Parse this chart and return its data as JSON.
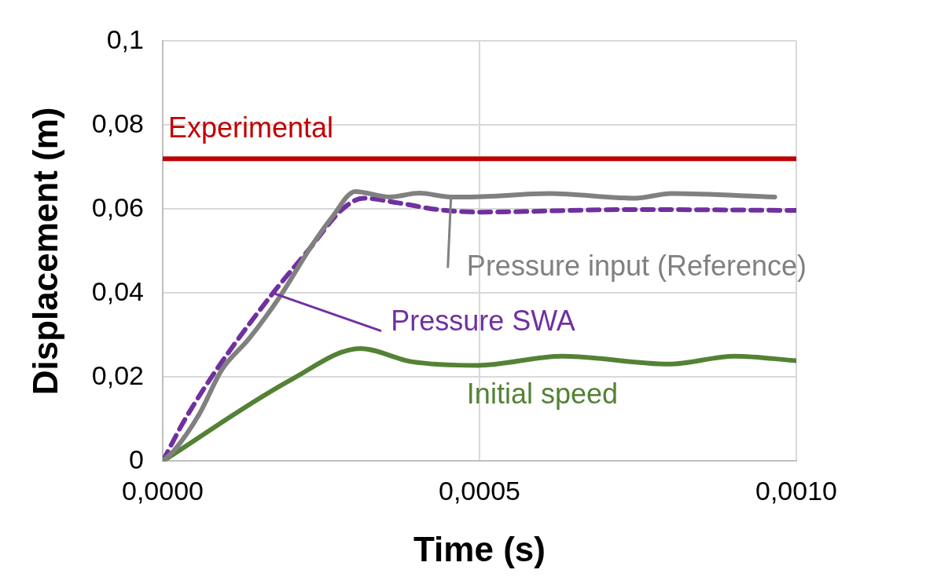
{
  "chart_data": {
    "type": "line",
    "xlabel": "Time (s)",
    "ylabel": "Displacement (m)",
    "xlim": [
      0,
      0.001
    ],
    "xticks": [
      {
        "value": 0,
        "label": "0,0000"
      },
      {
        "value": 0.0005,
        "label": "0,0005"
      },
      {
        "value": 0.001,
        "label": "0,0010"
      }
    ],
    "ylim": [
      0,
      0.1
    ],
    "yticks": [
      0,
      {
        "value": 0.02,
        "label": "0,02"
      },
      {
        "value": 0.04,
        "label": "0,04"
      },
      {
        "value": 0.06,
        "label": "0,06"
      },
      {
        "value": 0.08,
        "label": "0,08"
      },
      {
        "value": 0.1,
        "label": "0,1"
      }
    ],
    "grid": true,
    "ref_lines": [
      {
        "axis": "y",
        "value": 0.072,
        "label": "Experimental",
        "color": "#c00000"
      }
    ],
    "series": [
      {
        "name": "Pressure input (Reference)",
        "color": "#808080",
        "line_style": "solid",
        "x": [
          0,
          1.9e-05,
          5.7e-05,
          9.4e-05,
          0.000136,
          0.000186,
          0.000233,
          0.000267,
          0.000304,
          0.000358,
          0.000405,
          0.000455,
          0.000484,
          0.00061,
          0.000745,
          0.000803,
          0.000966
        ],
        "values": [
          0,
          0.0027,
          0.011,
          0.0219,
          0.0291,
          0.0394,
          0.0508,
          0.058,
          0.0642,
          0.0629,
          0.0638,
          0.0629,
          0.0629,
          0.0637,
          0.0626,
          0.0637,
          0.0629
        ]
      },
      {
        "name": "Pressure SWA",
        "color": "#7030a0",
        "line_style": "dashed",
        "x": [
          0,
          3.5e-05,
          9.1e-05,
          0.000174,
          0.000233,
          0.000283,
          0.000317,
          0.000371,
          0.000434,
          0.000497,
          0.000736,
          0.001
        ],
        "values": [
          0,
          0.0099,
          0.0231,
          0.04,
          0.0508,
          0.0599,
          0.0626,
          0.0615,
          0.0599,
          0.0593,
          0.0599,
          0.0597
        ]
      },
      {
        "name": "Initial speed",
        "color": "#548235",
        "line_style": "solid",
        "x": [
          0,
          0.000204,
          0.000312,
          0.000392,
          0.000497,
          0.000631,
          0.000799,
          0.000903,
          0.001
        ],
        "values": [
          0,
          0.0195,
          0.0268,
          0.0237,
          0.0228,
          0.025,
          0.0231,
          0.025,
          0.0239
        ]
      }
    ]
  }
}
